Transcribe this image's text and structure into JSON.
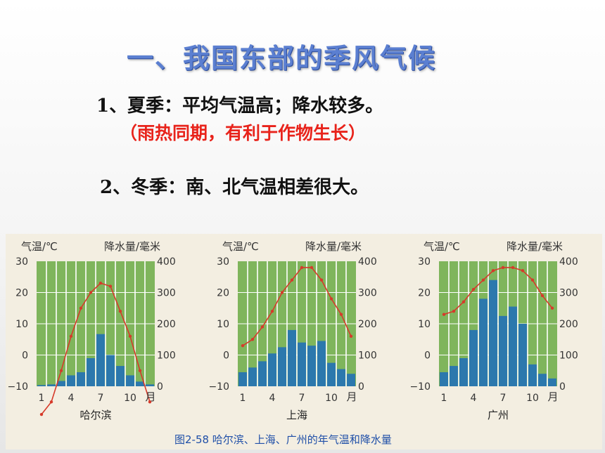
{
  "heading": {
    "title": "一、我国东部的季风气候",
    "point1": "1、夏季：平均气温高；降水较多。",
    "point1_note": "（雨热同期，有利于作物生长）",
    "point2": "2、冬季：南、北气温相差很大。"
  },
  "figure_caption": "图2-58   哈尔滨、上海、广州的年气温和降水量",
  "colors": {
    "grid_bg": "#7fb55c",
    "bar": "#2c78ad",
    "line": "#d63a2a",
    "title": "#5b7fd1",
    "highlight": "#e8231b"
  },
  "chart_data": [
    {
      "type": "bar",
      "title": "哈尔滨",
      "ylabel_left": "气温/℃",
      "ylabel_right": "降水量/毫米",
      "xunit": "月",
      "x_ticks": [
        "1",
        "4",
        "7",
        "10"
      ],
      "y_left_ticks": [
        "30",
        "20",
        "10",
        "0",
        "−10"
      ],
      "y_right_ticks": [
        "400",
        "300",
        "200",
        "100",
        "0"
      ],
      "ylim_left": [
        -10,
        30
      ],
      "ylim_right": [
        0,
        400
      ],
      "months": [
        1,
        2,
        3,
        4,
        5,
        6,
        7,
        8,
        9,
        10,
        11,
        12
      ],
      "precipitation": [
        4,
        6,
        17,
        35,
        45,
        90,
        167,
        100,
        65,
        35,
        15,
        6
      ],
      "temperature": [
        -19,
        -15,
        -5,
        6,
        15,
        20,
        23,
        22,
        14,
        6,
        -5,
        -15
      ],
      "grid": true
    },
    {
      "type": "bar",
      "title": "上海",
      "ylabel_left": "气温/℃",
      "ylabel_right": "降水量/毫米",
      "xunit": "月",
      "x_ticks": [
        "1",
        "4",
        "7",
        "10"
      ],
      "y_left_ticks": [
        "30",
        "20",
        "10",
        "0",
        "−10"
      ],
      "y_right_ticks": [
        "400",
        "300",
        "200",
        "100",
        "0"
      ],
      "ylim_left": [
        -10,
        30
      ],
      "ylim_right": [
        0,
        400
      ],
      "months": [
        1,
        2,
        3,
        4,
        5,
        6,
        7,
        8,
        9,
        10,
        11,
        12
      ],
      "precipitation": [
        45,
        60,
        80,
        105,
        125,
        180,
        140,
        130,
        145,
        75,
        55,
        40
      ],
      "temperature": [
        3,
        5,
        9,
        14,
        20,
        24,
        28,
        28,
        24,
        18,
        13,
        6
      ],
      "grid": true
    },
    {
      "type": "bar",
      "title": "广州",
      "ylabel_left": "气温/℃",
      "ylabel_right": "降水量/毫米",
      "xunit": "月",
      "x_ticks": [
        "1",
        "4",
        "7",
        "10"
      ],
      "y_left_ticks": [
        "30",
        "20",
        "10",
        "0",
        "−10"
      ],
      "y_right_ticks": [
        "400",
        "300",
        "200",
        "100",
        "0"
      ],
      "ylim_left": [
        -10,
        30
      ],
      "ylim_right": [
        0,
        400
      ],
      "months": [
        1,
        2,
        3,
        4,
        5,
        6,
        7,
        8,
        9,
        10,
        11,
        12
      ],
      "precipitation": [
        45,
        65,
        90,
        180,
        280,
        340,
        225,
        255,
        200,
        70,
        40,
        25
      ],
      "temperature": [
        13,
        14,
        17,
        21,
        24,
        27,
        28,
        28,
        27,
        24,
        19,
        15
      ],
      "grid": true
    }
  ]
}
